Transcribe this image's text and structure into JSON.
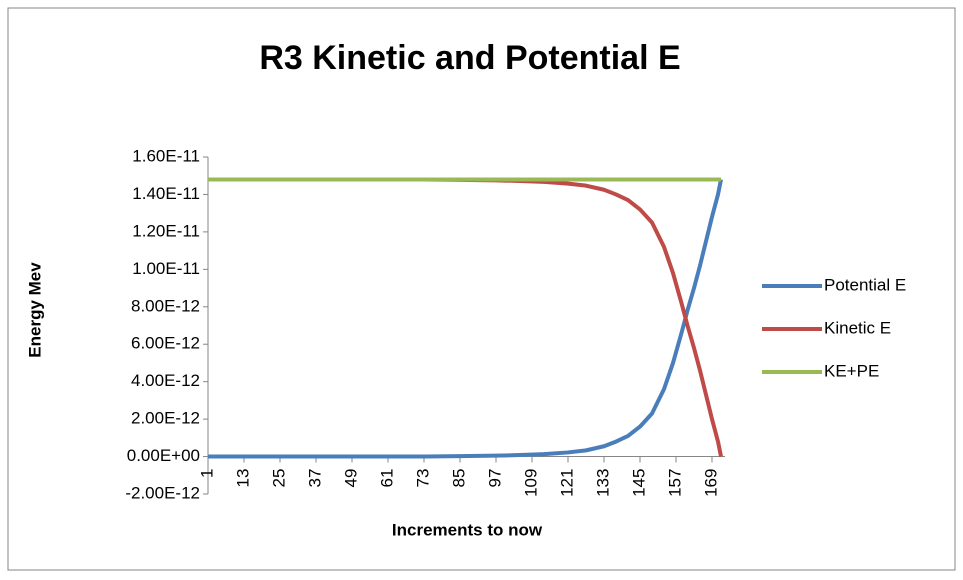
{
  "chart_data": {
    "type": "line",
    "title": "R3 Kinetic and Potential E",
    "xlabel": "Increments  to now",
    "ylabel": "Energy Mev",
    "x": [
      1,
      25,
      49,
      73,
      85,
      97,
      105,
      113,
      121,
      127,
      133,
      137,
      141,
      145,
      149,
      153,
      156,
      159,
      161,
      163,
      165,
      167,
      169,
      171,
      172
    ],
    "series": [
      {
        "name": "Potential E",
        "color": "#4a7ebb",
        "values": [
          0,
          0,
          1e-15,
          5e-15,
          2e-14,
          5e-14,
          8e-14,
          1.3e-13,
          2.2e-13,
          3.3e-13,
          5.5e-13,
          8e-13,
          1.1e-12,
          1.6e-12,
          2.3e-12,
          3.6e-12,
          5e-12,
          6.7e-12,
          7.9e-12,
          9e-12,
          1.02e-11,
          1.15e-11,
          1.28e-11,
          1.4e-11,
          1.48e-11
        ]
      },
      {
        "name": "Kinetic E",
        "color": "#be4b48",
        "values": [
          1.48e-11,
          1.48e-11,
          1.4799e-11,
          1.4795e-11,
          1.478e-11,
          1.475e-11,
          1.472e-11,
          1.467e-11,
          1.458e-11,
          1.447e-11,
          1.425e-11,
          1.4e-11,
          1.37e-11,
          1.32e-11,
          1.25e-11,
          1.12e-11,
          9.8e-12,
          8.1e-12,
          6.9e-12,
          5.8e-12,
          4.6e-12,
          3.3e-12,
          2e-12,
          8e-13,
          0
        ]
      },
      {
        "name": "KE+PE",
        "color": "#98b954",
        "values": [
          1.48e-11,
          1.48e-11,
          1.48e-11,
          1.48e-11,
          1.48e-11,
          1.48e-11,
          1.48e-11,
          1.48e-11,
          1.48e-11,
          1.48e-11,
          1.48e-11,
          1.48e-11,
          1.48e-11,
          1.48e-11,
          1.48e-11,
          1.48e-11,
          1.48e-11,
          1.48e-11,
          1.48e-11,
          1.48e-11,
          1.48e-11,
          1.48e-11,
          1.48e-11,
          1.48e-11,
          1.48e-11
        ]
      }
    ],
    "xlim": [
      1,
      172
    ],
    "xticks": [
      1,
      13,
      25,
      37,
      49,
      61,
      73,
      85,
      97,
      109,
      121,
      133,
      145,
      157,
      169
    ],
    "ylim": [
      -2e-12,
      1.6e-11
    ],
    "yticks": [
      {
        "value": -2e-12,
        "label": "-2.00E-12"
      },
      {
        "value": 0,
        "label": "0.00E+00"
      },
      {
        "value": 2e-12,
        "label": "2.00E-12"
      },
      {
        "value": 4e-12,
        "label": "4.00E-12"
      },
      {
        "value": 6e-12,
        "label": "6.00E-12"
      },
      {
        "value": 8e-12,
        "label": "8.00E-12"
      },
      {
        "value": 1e-11,
        "label": "1.00E-11"
      },
      {
        "value": 1.2e-11,
        "label": "1.20E-11"
      },
      {
        "value": 1.4e-11,
        "label": "1.40E-11"
      },
      {
        "value": 1.6e-11,
        "label": "1.60E-11"
      }
    ],
    "legend": "right"
  }
}
